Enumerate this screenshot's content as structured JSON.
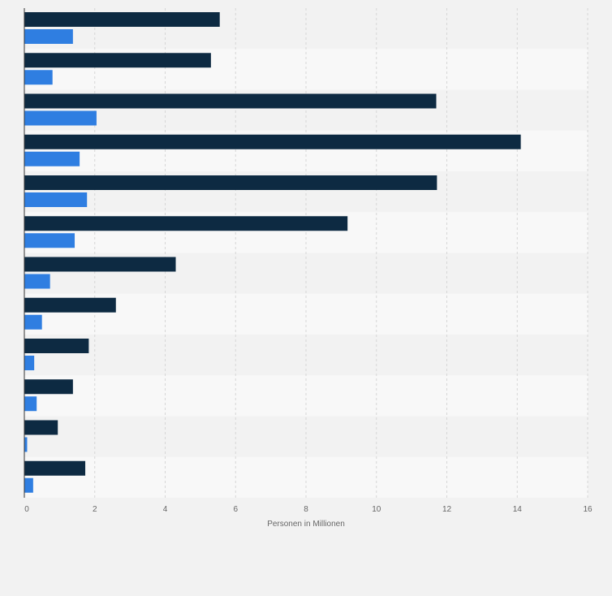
{
  "chart_data": {
    "type": "bar",
    "orientation": "horizontal",
    "categories": [
      "",
      "",
      "",
      "",
      "",
      "",
      "",
      "",
      "",
      "",
      "",
      ""
    ],
    "series": [
      {
        "color": "#0d2a42",
        "values": [
          5.55,
          5.3,
          11.7,
          14.1,
          11.72,
          9.18,
          4.3,
          2.6,
          1.83,
          1.38,
          0.95,
          1.73
        ]
      },
      {
        "color": "#2f7ee1",
        "values": [
          1.38,
          0.8,
          2.05,
          1.57,
          1.78,
          1.43,
          0.73,
          0.5,
          0.28,
          0.35,
          0.08,
          0.25
        ]
      }
    ],
    "xlabel": "Personen in Millionen",
    "xlim": [
      0,
      16
    ],
    "xticks": [
      0,
      2,
      4,
      6,
      8,
      10,
      12,
      14,
      16
    ],
    "grid": true
  }
}
